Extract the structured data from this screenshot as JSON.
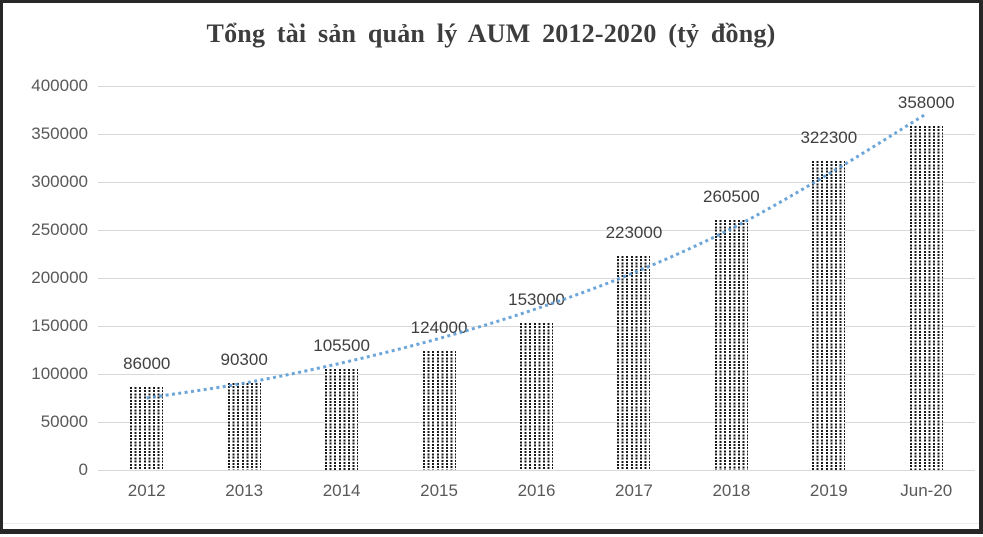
{
  "title": "Tổng tài sản quản lý AUM 2012-2020 (tỷ đồng)",
  "chart_data": {
    "type": "bar",
    "title": "Tổng tài sản quản lý AUM 2012-2020 (tỷ đồng)",
    "categories": [
      "2012",
      "2013",
      "2014",
      "2015",
      "2016",
      "2017",
      "2018",
      "2019",
      "Jun-20"
    ],
    "values": [
      86000,
      90300,
      105500,
      124000,
      153000,
      223000,
      260500,
      322300,
      358000
    ],
    "data_labels": [
      "86000",
      "90300",
      "105500",
      "124000",
      "153000",
      "223000",
      "260500",
      "322300",
      "358000"
    ],
    "xlabel": "",
    "ylabel": "",
    "ylim": [
      0,
      400000
    ],
    "yticks": [
      0,
      50000,
      100000,
      150000,
      200000,
      250000,
      300000,
      350000,
      400000
    ],
    "ytick_labels": [
      "0",
      "50000",
      "100000",
      "150000",
      "200000",
      "250000",
      "300000",
      "350000",
      "400000"
    ],
    "grid": true,
    "legend_position": "none",
    "bar_style": "black-dot-pattern-fill",
    "trendline": {
      "type": "exponential",
      "line_style": "dotted",
      "color": "#5B9BD5",
      "values": [
        75000,
        90500,
        111500,
        137000,
        168000,
        205500,
        251500,
        308500,
        371000
      ]
    }
  },
  "colors": {
    "background": "#ffffff",
    "frame_border": "#272727",
    "gridline": "#d9d9d9",
    "axis_label_text": "#595959",
    "data_label_text": "#3f3f3f",
    "title_text": "#3d3d3d",
    "trend_line": "#5B9BD5"
  }
}
